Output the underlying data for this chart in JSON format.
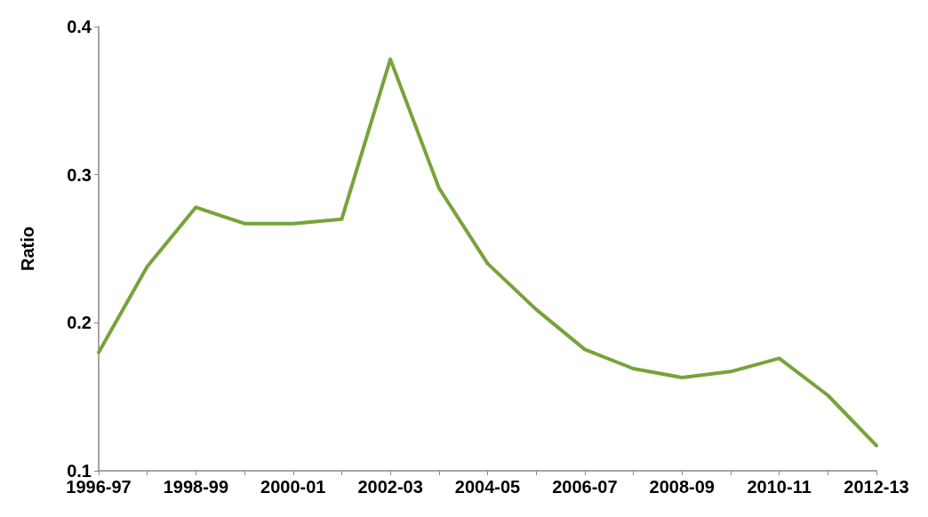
{
  "chart_data": {
    "type": "line",
    "ylabel": "Ratio",
    "categories": [
      "1996-97",
      null,
      "1998-99",
      null,
      "2000-01",
      null,
      "2002-03",
      null,
      "2004-05",
      null,
      "2006-07",
      null,
      "2008-09",
      null,
      "2010-11",
      null,
      "2012-13"
    ],
    "series": [
      {
        "color": "#77a33a",
        "values": [
          0.18,
          0.238,
          0.278,
          0.267,
          0.267,
          0.27,
          0.378,
          0.291,
          0.24,
          0.209,
          0.182,
          0.169,
          0.163,
          0.167,
          0.176,
          0.151,
          0.117
        ]
      }
    ],
    "ylim": [
      0.1,
      0.4
    ],
    "yticks": [
      0.1,
      0.2,
      0.3,
      0.4
    ],
    "grid": false,
    "marker": "none",
    "line_style": "solid"
  }
}
